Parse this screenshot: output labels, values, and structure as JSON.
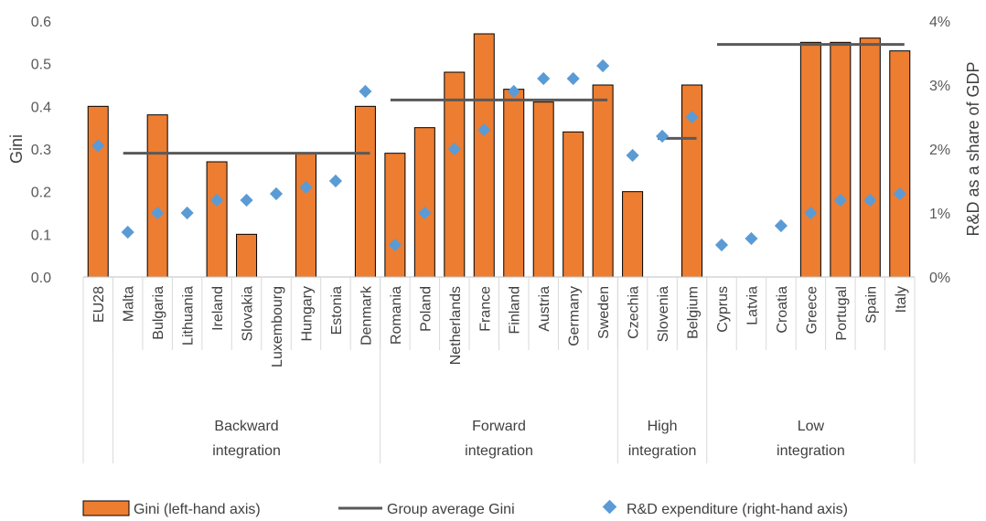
{
  "chart_data": {
    "type": "bar",
    "categories": [
      "EU28",
      "Malta",
      "Bulgaria",
      "Lithuania",
      "Ireland",
      "Slovakia",
      "Luxembourg",
      "Hungary",
      "Estonia",
      "Denmark",
      "Romania",
      "Poland",
      "Netherlands",
      "France",
      "Finland",
      "Austria",
      "Germany",
      "Sweden",
      "Czechia",
      "Slovenia",
      "Belgium",
      "Cyprus",
      "Latvia",
      "Croatia",
      "Greece",
      "Portugal",
      "Spain",
      "Italy"
    ],
    "series": [
      {
        "name": "Gini (left-hand axis)",
        "kind": "bar",
        "axis": "left",
        "color": "#ED7D31",
        "values": [
          0.4,
          null,
          0.38,
          null,
          0.27,
          0.1,
          null,
          0.29,
          null,
          0.4,
          0.29,
          0.35,
          0.48,
          0.57,
          0.44,
          0.41,
          0.34,
          0.45,
          0.2,
          null,
          0.45,
          null,
          null,
          null,
          0.55,
          0.55,
          0.56,
          0.53
        ]
      },
      {
        "name": "R&D expenditure (right-hand axis)",
        "kind": "scatter",
        "axis": "right",
        "color": "#5B9BD5",
        "values": [
          2.05,
          0.7,
          1.0,
          1.0,
          1.2,
          1.2,
          1.3,
          1.4,
          1.5,
          2.9,
          0.5,
          1.0,
          2.0,
          2.3,
          2.9,
          3.1,
          3.1,
          3.3,
          1.9,
          2.2,
          2.5,
          0.5,
          0.6,
          0.8,
          1.0,
          1.2,
          1.2,
          1.3
        ]
      },
      {
        "name": "Group average Gini",
        "kind": "group-line",
        "axis": "left",
        "color": "#595959",
        "groups": [
          {
            "from": 1,
            "to": 9,
            "value": 0.29
          },
          {
            "from": 10,
            "to": 17,
            "value": 0.415
          },
          {
            "from": 19,
            "to": 20,
            "value": 0.325
          },
          {
            "from": 21,
            "to": 27,
            "value": 0.545
          }
        ]
      }
    ],
    "groups": [
      {
        "label_lines": [
          "Backward",
          "integration"
        ],
        "start": 1,
        "end": 9
      },
      {
        "label_lines": [
          "Forward",
          "integration"
        ],
        "start": 10,
        "end": 17
      },
      {
        "label_lines": [
          "High",
          "integration"
        ],
        "start": 18,
        "end": 20
      },
      {
        "label_lines": [
          "Low",
          "integration"
        ],
        "start": 21,
        "end": 27
      }
    ],
    "ylabel": "Gini",
    "y2label": "R&D as a share of GDP",
    "ylim": [
      0,
      0.6
    ],
    "y2lim": [
      0,
      4
    ],
    "yticks": [
      "0.0",
      "0.1",
      "0.2",
      "0.3",
      "0.4",
      "0.5",
      "0.6"
    ],
    "y2ticks": [
      "0%",
      "1%",
      "2%",
      "3%",
      "4%"
    ],
    "grid": false,
    "legend_position": "bottom"
  }
}
